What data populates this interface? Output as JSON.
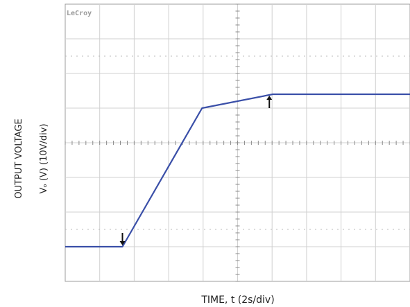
{
  "chart_data": {
    "type": "line",
    "instrument_brand": "LeCroy",
    "title": "",
    "xlabel": "TIME, t (2s/div)",
    "ylabel_lines": [
      "OUTPUT VOLTAGE",
      "Vₒ (V) (10V/div)"
    ],
    "x_divisions": 10,
    "y_divisions": 8,
    "xlim_div": [
      0,
      10
    ],
    "ylim_div": [
      0,
      8
    ],
    "grid": true,
    "series": [
      {
        "color": "#3a4fa8",
        "points_div": [
          [
            0,
            1.0
          ],
          [
            1.66,
            1.0
          ],
          [
            3.97,
            5.0
          ],
          [
            6.02,
            5.4
          ],
          [
            10,
            5.4
          ]
        ]
      }
    ],
    "annotations": [
      {
        "type": "arrow-down",
        "at_div": [
          1.66,
          1.0
        ]
      },
      {
        "type": "arrow-up",
        "at_div": [
          5.92,
          5.4
        ]
      }
    ],
    "colors": {
      "trace": "#3a4fa8",
      "grid": "#d0d0d0",
      "border": "#9c9c9c"
    }
  }
}
